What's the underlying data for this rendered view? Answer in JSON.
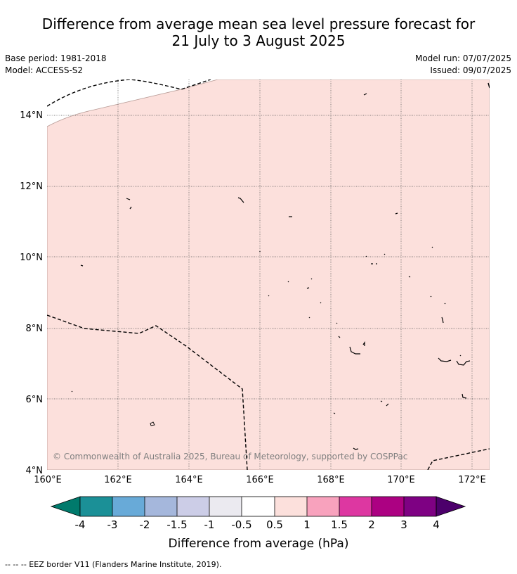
{
  "title": {
    "line1": "Difference from average mean sea level pressure forecast for",
    "line2": "21 July to 3 August 2025"
  },
  "meta": {
    "base_period": "Base period: 1981-2018",
    "model": "Model: ACCESS-S2",
    "model_run": "Model run: 07/07/2025",
    "issued": "Issued: 09/07/2025"
  },
  "map": {
    "lat_labels": [
      "14°N",
      "12°N",
      "10°N",
      "8°N",
      "6°N",
      "4°N"
    ],
    "lon_labels": [
      "160°E",
      "162°E",
      "164°E",
      "166°E",
      "168°E",
      "170°E",
      "172°E"
    ],
    "fill_color": "#fce0dc",
    "boundary_color": "#b89c97",
    "copyright": "© Commonwealth of Australia 2025, Bureau of Meteorology, supported by COSPPac"
  },
  "colorbar": {
    "label": "Difference from average (hPa)",
    "ticks": [
      "-4",
      "-3",
      "-2",
      "-1.5",
      "-1",
      "-0.5",
      "0.5",
      "1",
      "1.5",
      "2",
      "3",
      "4"
    ],
    "colors": [
      "#007a6c",
      "#1b9097",
      "#68aad8",
      "#a5b7dc",
      "#cccde7",
      "#ebeaf0",
      "#ffffff",
      "#fce0dc",
      "#f8a2bd",
      "#dd37a1",
      "#ac0182",
      "#7e0183",
      "#4c006b"
    ]
  },
  "footer": {
    "legend": "-- -- -- EEZ border V11 (Flanders Marine Institute, 2019)."
  }
}
